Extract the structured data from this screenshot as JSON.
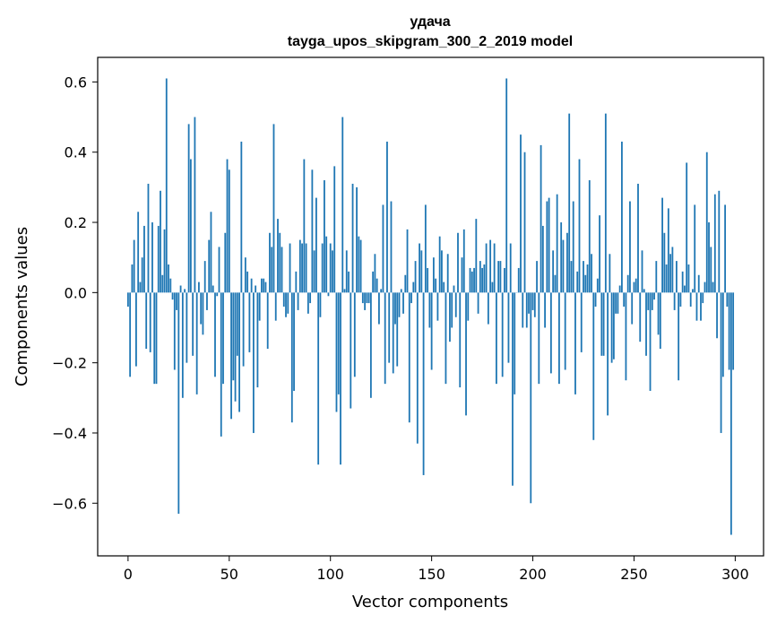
{
  "chart_data": {
    "type": "bar",
    "title": "удача",
    "subtitle": "tayga_upos_skipgram_300_2_2019 model",
    "xlabel": "Vector components",
    "ylabel": "Components values",
    "xlim": [
      -15,
      314
    ],
    "ylim": [
      -0.75,
      0.67
    ],
    "xticks": [
      0,
      50,
      100,
      150,
      200,
      250,
      300
    ],
    "yticks": [
      -0.6,
      -0.4,
      -0.2,
      0.0,
      0.2,
      0.4,
      0.6
    ],
    "ytick_labels": [
      "−0.6",
      "−0.4",
      "−0.2",
      "0.0",
      "0.2",
      "0.4",
      "0.6"
    ],
    "grid": false,
    "bar_color": "#1f77b4",
    "x": [
      0,
      1,
      2,
      3,
      4,
      5,
      6,
      7,
      8,
      9,
      10,
      11,
      12,
      13,
      14,
      15,
      16,
      17,
      18,
      19,
      20,
      21,
      22,
      23,
      24,
      25,
      26,
      27,
      28,
      29,
      30,
      31,
      32,
      33,
      34,
      35,
      36,
      37,
      38,
      39,
      40,
      41,
      42,
      43,
      44,
      45,
      46,
      47,
      48,
      49,
      50,
      51,
      52,
      53,
      54,
      55,
      56,
      57,
      58,
      59,
      60,
      61,
      62,
      63,
      64,
      65,
      66,
      67,
      68,
      69,
      70,
      71,
      72,
      73,
      74,
      75,
      76,
      77,
      78,
      79,
      80,
      81,
      82,
      83,
      84,
      85,
      86,
      87,
      88,
      89,
      90,
      91,
      92,
      93,
      94,
      95,
      96,
      97,
      98,
      99,
      100,
      101,
      102,
      103,
      104,
      105,
      106,
      107,
      108,
      109,
      110,
      111,
      112,
      113,
      114,
      115,
      116,
      117,
      118,
      119,
      120,
      121,
      122,
      123,
      124,
      125,
      126,
      127,
      128,
      129,
      130,
      131,
      132,
      133,
      134,
      135,
      136,
      137,
      138,
      139,
      140,
      141,
      142,
      143,
      144,
      145,
      146,
      147,
      148,
      149,
      150,
      151,
      152,
      153,
      154,
      155,
      156,
      157,
      158,
      159,
      160,
      161,
      162,
      163,
      164,
      165,
      166,
      167,
      168,
      169,
      170,
      171,
      172,
      173,
      174,
      175,
      176,
      177,
      178,
      179,
      180,
      181,
      182,
      183,
      184,
      185,
      186,
      187,
      188,
      189,
      190,
      191,
      192,
      193,
      194,
      195,
      196,
      197,
      198,
      199,
      200,
      201,
      202,
      203,
      204,
      205,
      206,
      207,
      208,
      209,
      210,
      211,
      212,
      213,
      214,
      215,
      216,
      217,
      218,
      219,
      220,
      221,
      222,
      223,
      224,
      225,
      226,
      227,
      228,
      229,
      230,
      231,
      232,
      233,
      234,
      235,
      236,
      237,
      238,
      239,
      240,
      241,
      242,
      243,
      244,
      245,
      246,
      247,
      248,
      249,
      250,
      251,
      252,
      253,
      254,
      255,
      256,
      257,
      258,
      259,
      260,
      261,
      262,
      263,
      264,
      265,
      266,
      267,
      268,
      269,
      270,
      271,
      272,
      273,
      274,
      275,
      276,
      277,
      278,
      279,
      280,
      281,
      282,
      283,
      284,
      285,
      286,
      287,
      288,
      289,
      290,
      291,
      292,
      293,
      294,
      295,
      296,
      297,
      298,
      299
    ],
    "values": [
      -0.04,
      -0.24,
      0.08,
      0.15,
      -0.21,
      0.23,
      0.03,
      0.1,
      0.19,
      -0.16,
      0.31,
      -0.17,
      0.2,
      -0.26,
      -0.26,
      0.19,
      0.29,
      0.05,
      0.18,
      0.61,
      0.08,
      0.04,
      -0.02,
      -0.22,
      -0.05,
      -0.63,
      0.02,
      -0.3,
      0.01,
      -0.2,
      0.48,
      0.38,
      -0.18,
      0.5,
      -0.29,
      0.03,
      -0.09,
      -0.12,
      0.09,
      -0.05,
      0.15,
      0.23,
      0.02,
      -0.24,
      -0.01,
      0.13,
      -0.41,
      -0.26,
      0.17,
      0.38,
      0.35,
      -0.36,
      -0.25,
      -0.31,
      -0.18,
      -0.34,
      0.43,
      -0.21,
      0.1,
      0.06,
      -0.17,
      0.04,
      -0.4,
      0.02,
      -0.27,
      -0.08,
      0.04,
      0.04,
      0.03,
      -0.16,
      0.17,
      0.13,
      0.48,
      -0.08,
      0.21,
      0.17,
      0.13,
      -0.04,
      -0.07,
      -0.06,
      0.14,
      -0.37,
      -0.28,
      0.06,
      -0.05,
      0.15,
      0.14,
      0.38,
      0.14,
      -0.06,
      -0.03,
      0.35,
      0.12,
      0.27,
      -0.49,
      -0.07,
      0.14,
      0.32,
      0.16,
      -0.01,
      0.14,
      0.12,
      0.36,
      -0.34,
      -0.29,
      -0.49,
      0.5,
      0.01,
      0.12,
      0.06,
      -0.33,
      0.31,
      -0.24,
      0.3,
      0.16,
      0.15,
      -0.03,
      -0.05,
      -0.03,
      -0.03,
      -0.3,
      0.06,
      0.11,
      0.04,
      -0.09,
      0.01,
      0.25,
      -0.26,
      0.43,
      -0.2,
      0.26,
      -0.23,
      -0.09,
      -0.21,
      -0.07,
      0.01,
      -0.06,
      0.05,
      0.18,
      -0.37,
      -0.03,
      0.03,
      0.09,
      -0.43,
      0.14,
      0.12,
      -0.52,
      0.25,
      0.07,
      -0.1,
      -0.22,
      0.1,
      0.04,
      -0.08,
      0.16,
      0.12,
      0.03,
      -0.26,
      0.11,
      -0.14,
      -0.1,
      0.02,
      -0.07,
      0.17,
      -0.27,
      0.1,
      0.18,
      -0.35,
      -0.08,
      0.07,
      0.06,
      0.07,
      0.21,
      -0.06,
      0.09,
      0.07,
      0.08,
      0.14,
      -0.09,
      0.15,
      0.03,
      0.14,
      -0.26,
      0.09,
      0.09,
      -0.24,
      0.07,
      0.61,
      -0.2,
      0.14,
      -0.55,
      -0.29,
      0.0,
      0.07,
      0.45,
      -0.1,
      0.4,
      -0.1,
      -0.06,
      -0.6,
      -0.05,
      -0.07,
      0.09,
      -0.26,
      0.42,
      0.19,
      -0.1,
      0.26,
      0.27,
      -0.23,
      0.12,
      0.05,
      0.28,
      -0.26,
      0.2,
      0.15,
      -0.22,
      0.17,
      0.51,
      0.09,
      0.26,
      -0.29,
      0.06,
      0.38,
      -0.17,
      0.09,
      0.05,
      0.08,
      0.32,
      0.11,
      -0.42,
      -0.04,
      0.04,
      0.22,
      -0.18,
      -0.18,
      0.51,
      -0.35,
      0.11,
      -0.2,
      -0.19,
      -0.06,
      -0.06,
      0.02,
      0.43,
      -0.04,
      -0.25,
      0.05,
      0.26,
      -0.09,
      0.03,
      0.04,
      0.31,
      -0.14,
      0.12,
      0.01,
      -0.18,
      -0.05,
      -0.28,
      -0.05,
      -0.02,
      0.09,
      -0.12,
      -0.16,
      0.27,
      0.17,
      0.08,
      0.24,
      0.11,
      0.13,
      -0.05,
      0.09,
      -0.25,
      -0.04,
      0.06,
      0.02,
      0.37,
      0.08,
      -0.04,
      0.01,
      0.25,
      -0.08,
      0.05,
      -0.08,
      -0.03,
      0.03,
      0.4,
      0.2,
      0.13,
      0.03,
      0.28,
      -0.13,
      0.29,
      -0.4,
      -0.24,
      0.25,
      -0.04,
      -0.22,
      -0.69,
      -0.22
    ]
  }
}
